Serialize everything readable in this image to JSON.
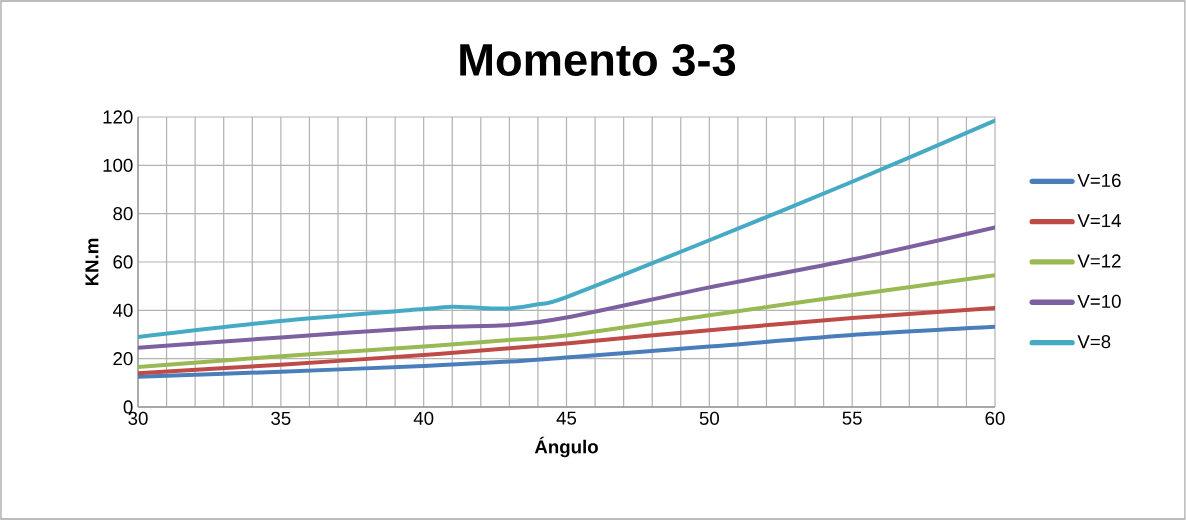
{
  "chart_data": {
    "type": "line",
    "title": "Momento 3-3",
    "xlabel": "Ángulo",
    "ylabel": "KN.m",
    "xlim": [
      30,
      60
    ],
    "xticks": [
      30,
      35,
      40,
      45,
      50,
      55,
      60
    ],
    "ylim": [
      0,
      120
    ],
    "yticks": [
      0,
      20,
      40,
      60,
      80,
      100,
      120
    ],
    "grid": true,
    "legend": "right",
    "marker": "none",
    "series": [
      {
        "name": "V=16",
        "color": "#4a7ebb",
        "x": [
          30,
          35,
          40,
          43,
          45,
          50,
          55,
          60
        ],
        "values": [
          12.5,
          14.6,
          17,
          18.8,
          20.5,
          25,
          29.8,
          33.2
        ]
      },
      {
        "name": "V=14",
        "color": "#be4b48",
        "x": [
          30,
          35,
          40,
          43,
          45,
          50,
          55,
          60
        ],
        "values": [
          14,
          17.5,
          21.5,
          24.3,
          26.3,
          31.8,
          36.8,
          41
        ]
      },
      {
        "name": "V=12",
        "color": "#98b954",
        "x": [
          30,
          35,
          40,
          43,
          45,
          50,
          55,
          60
        ],
        "values": [
          16.5,
          21,
          25,
          27.7,
          29.6,
          38,
          46.3,
          54.5
        ]
      },
      {
        "name": "V=10",
        "color": "#7d60a0",
        "x": [
          30,
          35,
          40,
          43,
          45,
          50,
          55,
          60
        ],
        "values": [
          24.5,
          28.8,
          32.8,
          33.9,
          37,
          49.5,
          61,
          74.3
        ]
      },
      {
        "name": "V=8",
        "color": "#46aac5",
        "x": [
          30,
          35,
          40,
          41,
          42,
          43,
          44,
          45,
          50,
          55,
          60
        ],
        "values": [
          29,
          35.6,
          40.5,
          41.5,
          41,
          40.8,
          42.5,
          45.5,
          69,
          93.2,
          118.5
        ]
      }
    ]
  }
}
